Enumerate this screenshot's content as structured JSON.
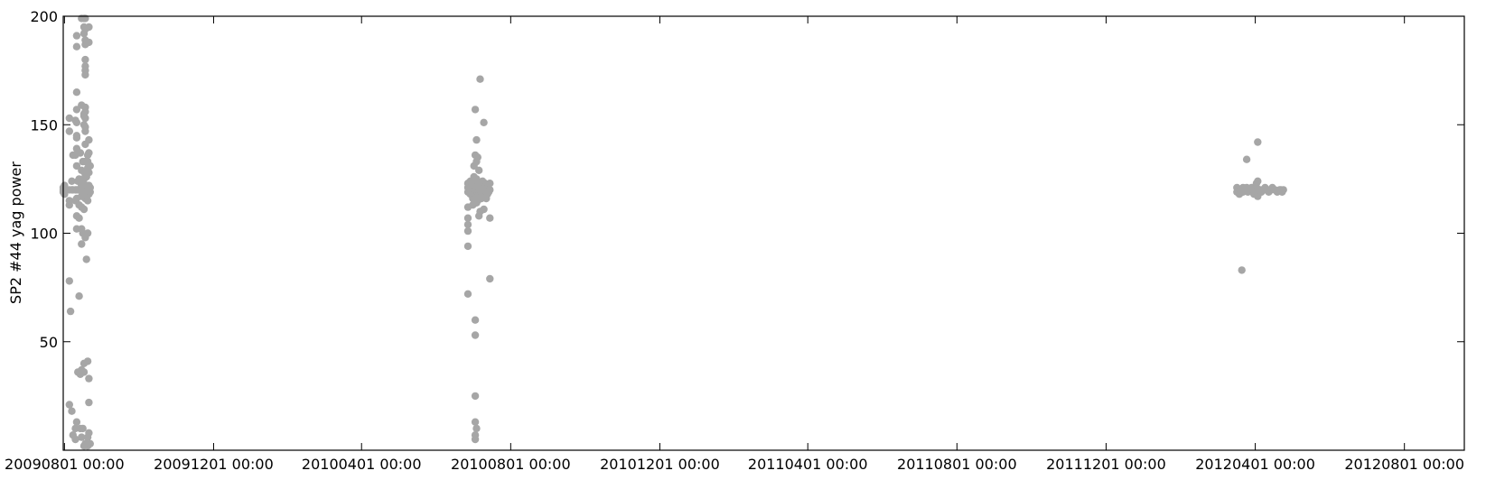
{
  "chart_data": {
    "type": "scatter",
    "title": "",
    "xlabel": "",
    "ylabel": "SP2 #44 yag power",
    "xlim": [
      "2009-07-31",
      "2012-09-19"
    ],
    "ylim": [
      0,
      200
    ],
    "grid": false,
    "colors": {
      "points": "#a6a6a6",
      "axes": "#000000",
      "background": "#ffffff"
    },
    "x_ticks": [
      {
        "date": "2009-08-01",
        "label": "20090801 00:00"
      },
      {
        "date": "2009-12-01",
        "label": "20091201 00:00"
      },
      {
        "date": "2010-04-01",
        "label": "20100401 00:00"
      },
      {
        "date": "2010-08-01",
        "label": "20100801 00:00"
      },
      {
        "date": "2010-12-01",
        "label": "20101201 00:00"
      },
      {
        "date": "2011-04-01",
        "label": "20110401 00:00"
      },
      {
        "date": "2011-08-01",
        "label": "20110801 00:00"
      },
      {
        "date": "2011-12-01",
        "label": "20111201 00:00"
      },
      {
        "date": "2012-04-01",
        "label": "20120401 00:00"
      },
      {
        "date": "2012-08-01",
        "label": "20120801 00:00"
      }
    ],
    "y_ticks": [
      {
        "value": 50,
        "label": "50"
      },
      {
        "value": 100,
        "label": "100"
      },
      {
        "value": 150,
        "label": "150"
      },
      {
        "value": 200,
        "label": "200"
      }
    ],
    "series": [
      {
        "points": [
          [
            "2009-07-31",
            120
          ],
          [
            "2009-07-31",
            121
          ],
          [
            "2009-07-31",
            119
          ],
          [
            "2009-08-01",
            120
          ],
          [
            "2009-08-01",
            122
          ],
          [
            "2009-08-01",
            118
          ],
          [
            "2009-08-05",
            153
          ],
          [
            "2009-08-05",
            147
          ],
          [
            "2009-08-05",
            113
          ],
          [
            "2009-08-05",
            115
          ],
          [
            "2009-08-05",
            120
          ],
          [
            "2009-08-05",
            21
          ],
          [
            "2009-08-05",
            78
          ],
          [
            "2009-08-06",
            64
          ],
          [
            "2009-08-07",
            124
          ],
          [
            "2009-08-07",
            120
          ],
          [
            "2009-08-07",
            18
          ],
          [
            "2009-08-08",
            136
          ],
          [
            "2009-08-08",
            120
          ],
          [
            "2009-08-08",
            7
          ],
          [
            "2009-08-10",
            136
          ],
          [
            "2009-08-10",
            152
          ],
          [
            "2009-08-10",
            120
          ],
          [
            "2009-08-10",
            115
          ],
          [
            "2009-08-10",
            10
          ],
          [
            "2009-08-10",
            5
          ],
          [
            "2009-08-11",
            191
          ],
          [
            "2009-08-11",
            186
          ],
          [
            "2009-08-11",
            165
          ],
          [
            "2009-08-11",
            157
          ],
          [
            "2009-08-11",
            151
          ],
          [
            "2009-08-11",
            145
          ],
          [
            "2009-08-11",
            144
          ],
          [
            "2009-08-11",
            139
          ],
          [
            "2009-08-11",
            131
          ],
          [
            "2009-08-11",
            120
          ],
          [
            "2009-08-11",
            116
          ],
          [
            "2009-08-11",
            108
          ],
          [
            "2009-08-11",
            102
          ],
          [
            "2009-08-11",
            13
          ],
          [
            "2009-08-12",
            120
          ],
          [
            "2009-08-12",
            124
          ],
          [
            "2009-08-12",
            36
          ],
          [
            "2009-08-13",
            125
          ],
          [
            "2009-08-13",
            120
          ],
          [
            "2009-08-13",
            113
          ],
          [
            "2009-08-13",
            107
          ],
          [
            "2009-08-13",
            71
          ],
          [
            "2009-08-14",
            137
          ],
          [
            "2009-08-14",
            120
          ],
          [
            "2009-08-14",
            35
          ],
          [
            "2009-08-14",
            10
          ],
          [
            "2009-08-15",
            199
          ],
          [
            "2009-08-15",
            159
          ],
          [
            "2009-08-15",
            129
          ],
          [
            "2009-08-15",
            122
          ],
          [
            "2009-08-15",
            120
          ],
          [
            "2009-08-15",
            117
          ],
          [
            "2009-08-15",
            112
          ],
          [
            "2009-08-15",
            102
          ],
          [
            "2009-08-15",
            95
          ],
          [
            "2009-08-15",
            37
          ],
          [
            "2009-08-15",
            6
          ],
          [
            "2009-08-16",
            133
          ],
          [
            "2009-08-16",
            120
          ],
          [
            "2009-08-16",
            100
          ],
          [
            "2009-08-16",
            10
          ],
          [
            "2009-08-17",
            199
          ],
          [
            "2009-08-17",
            195
          ],
          [
            "2009-08-17",
            192
          ],
          [
            "2009-08-17",
            155
          ],
          [
            "2009-08-17",
            154
          ],
          [
            "2009-08-17",
            150
          ],
          [
            "2009-08-17",
            125
          ],
          [
            "2009-08-17",
            121
          ],
          [
            "2009-08-17",
            117
          ],
          [
            "2009-08-17",
            111
          ],
          [
            "2009-08-17",
            40
          ],
          [
            "2009-08-17",
            36
          ],
          [
            "2009-08-17",
            2
          ],
          [
            "2009-08-18",
            199
          ],
          [
            "2009-08-18",
            194
          ],
          [
            "2009-08-18",
            189
          ],
          [
            "2009-08-18",
            187
          ],
          [
            "2009-08-18",
            180
          ],
          [
            "2009-08-18",
            177
          ],
          [
            "2009-08-18",
            175
          ],
          [
            "2009-08-18",
            173
          ],
          [
            "2009-08-18",
            158
          ],
          [
            "2009-08-18",
            156
          ],
          [
            "2009-08-18",
            153
          ],
          [
            "2009-08-18",
            149
          ],
          [
            "2009-08-18",
            147
          ],
          [
            "2009-08-18",
            141
          ],
          [
            "2009-08-18",
            133
          ],
          [
            "2009-08-18",
            127
          ],
          [
            "2009-08-18",
            122
          ],
          [
            "2009-08-18",
            120
          ],
          [
            "2009-08-18",
            116
          ],
          [
            "2009-08-18",
            98
          ],
          [
            "2009-08-18",
            3
          ],
          [
            "2009-08-19",
            126
          ],
          [
            "2009-08-19",
            121
          ],
          [
            "2009-08-19",
            120
          ],
          [
            "2009-08-19",
            88
          ],
          [
            "2009-08-20",
            136
          ],
          [
            "2009-08-20",
            133
          ],
          [
            "2009-08-20",
            130
          ],
          [
            "2009-08-20",
            122
          ],
          [
            "2009-08-20",
            120
          ],
          [
            "2009-08-20",
            118
          ],
          [
            "2009-08-20",
            115
          ],
          [
            "2009-08-20",
            100
          ],
          [
            "2009-08-20",
            41
          ],
          [
            "2009-08-20",
            6
          ],
          [
            "2009-08-20",
            2
          ],
          [
            "2009-08-21",
            195
          ],
          [
            "2009-08-21",
            188
          ],
          [
            "2009-08-21",
            143
          ],
          [
            "2009-08-21",
            137
          ],
          [
            "2009-08-21",
            128
          ],
          [
            "2009-08-21",
            122
          ],
          [
            "2009-08-21",
            120
          ],
          [
            "2009-08-21",
            118
          ],
          [
            "2009-08-21",
            33
          ],
          [
            "2009-08-21",
            22
          ],
          [
            "2009-08-21",
            8
          ],
          [
            "2009-08-22",
            131
          ],
          [
            "2009-08-22",
            121
          ],
          [
            "2009-08-22",
            119
          ],
          [
            "2009-08-22",
            3
          ],
          [
            "2010-06-27",
            123
          ],
          [
            "2010-06-27",
            121
          ],
          [
            "2010-06-27",
            119
          ],
          [
            "2010-06-27",
            112
          ],
          [
            "2010-06-27",
            107
          ],
          [
            "2010-06-27",
            104
          ],
          [
            "2010-06-27",
            101
          ],
          [
            "2010-06-27",
            94
          ],
          [
            "2010-06-27",
            72
          ],
          [
            "2010-06-29",
            124
          ],
          [
            "2010-06-29",
            120
          ],
          [
            "2010-06-29",
            118
          ],
          [
            "2010-07-01",
            122
          ],
          [
            "2010-07-01",
            119
          ],
          [
            "2010-07-01",
            116
          ],
          [
            "2010-07-01",
            113
          ],
          [
            "2010-07-02",
            131
          ],
          [
            "2010-07-02",
            126
          ],
          [
            "2010-07-02",
            121
          ],
          [
            "2010-07-02",
            118
          ],
          [
            "2010-07-03",
            157
          ],
          [
            "2010-07-03",
            136
          ],
          [
            "2010-07-03",
            123
          ],
          [
            "2010-07-03",
            120
          ],
          [
            "2010-07-03",
            116
          ],
          [
            "2010-07-03",
            60
          ],
          [
            "2010-07-03",
            53
          ],
          [
            "2010-07-03",
            25
          ],
          [
            "2010-07-03",
            13
          ],
          [
            "2010-07-03",
            7
          ],
          [
            "2010-07-03",
            5
          ],
          [
            "2010-07-04",
            143
          ],
          [
            "2010-07-04",
            133
          ],
          [
            "2010-07-04",
            125
          ],
          [
            "2010-07-04",
            120
          ],
          [
            "2010-07-04",
            114
          ],
          [
            "2010-07-04",
            10
          ],
          [
            "2010-07-05",
            135
          ],
          [
            "2010-07-05",
            122
          ],
          [
            "2010-07-05",
            119
          ],
          [
            "2010-07-05",
            115
          ],
          [
            "2010-07-06",
            129
          ],
          [
            "2010-07-06",
            121
          ],
          [
            "2010-07-06",
            118
          ],
          [
            "2010-07-06",
            108
          ],
          [
            "2010-07-07",
            171
          ],
          [
            "2010-07-07",
            123
          ],
          [
            "2010-07-07",
            120
          ],
          [
            "2010-07-07",
            110
          ],
          [
            "2010-07-08",
            122
          ],
          [
            "2010-07-08",
            119
          ],
          [
            "2010-07-08",
            116
          ],
          [
            "2010-07-09",
            124
          ],
          [
            "2010-07-09",
            121
          ],
          [
            "2010-07-09",
            118
          ],
          [
            "2010-07-10",
            151
          ],
          [
            "2010-07-10",
            120
          ],
          [
            "2010-07-10",
            111
          ],
          [
            "2010-07-11",
            123
          ],
          [
            "2010-07-11",
            120
          ],
          [
            "2010-07-11",
            117
          ],
          [
            "2010-07-12",
            122
          ],
          [
            "2010-07-12",
            119
          ],
          [
            "2010-07-12",
            116
          ],
          [
            "2010-07-13",
            121
          ],
          [
            "2010-07-13",
            118
          ],
          [
            "2010-07-14",
            120
          ],
          [
            "2010-07-14",
            119
          ],
          [
            "2010-07-15",
            123
          ],
          [
            "2010-07-15",
            120
          ],
          [
            "2010-07-15",
            107
          ],
          [
            "2010-07-15",
            79
          ],
          [
            "2012-03-17",
            121
          ],
          [
            "2012-03-17",
            119
          ],
          [
            "2012-03-18",
            120
          ],
          [
            "2012-03-19",
            118
          ],
          [
            "2012-03-20",
            120
          ],
          [
            "2012-03-21",
            83
          ],
          [
            "2012-03-22",
            121
          ],
          [
            "2012-03-22",
            119
          ],
          [
            "2012-03-24",
            120
          ],
          [
            "2012-03-25",
            134
          ],
          [
            "2012-03-25",
            121
          ],
          [
            "2012-03-26",
            119
          ],
          [
            "2012-03-27",
            120
          ],
          [
            "2012-03-29",
            121
          ],
          [
            "2012-03-30",
            120
          ],
          [
            "2012-03-31",
            118
          ],
          [
            "2012-04-01",
            119
          ],
          [
            "2012-04-02",
            123
          ],
          [
            "2012-04-02",
            121
          ],
          [
            "2012-04-03",
            142
          ],
          [
            "2012-04-03",
            124
          ],
          [
            "2012-04-03",
            120
          ],
          [
            "2012-04-03",
            117
          ],
          [
            "2012-04-05",
            120
          ],
          [
            "2012-04-06",
            119
          ],
          [
            "2012-04-08",
            120
          ],
          [
            "2012-04-09",
            121
          ],
          [
            "2012-04-10",
            120
          ],
          [
            "2012-04-12",
            119
          ],
          [
            "2012-04-14",
            120
          ],
          [
            "2012-04-15",
            121
          ],
          [
            "2012-04-17",
            120
          ],
          [
            "2012-04-19",
            119
          ],
          [
            "2012-04-21",
            120
          ],
          [
            "2012-04-22",
            120
          ],
          [
            "2012-04-23",
            119
          ],
          [
            "2012-04-24",
            120
          ]
        ]
      }
    ]
  }
}
